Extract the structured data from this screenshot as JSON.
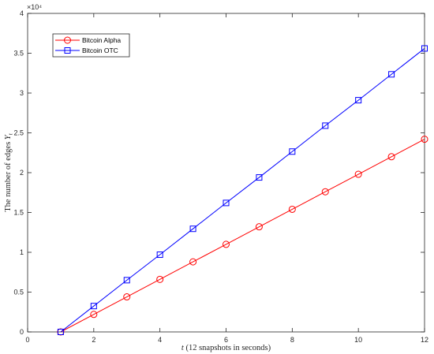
{
  "chart_data": {
    "type": "line",
    "title": "",
    "xlabel": "t (12 snapshots in seconds)",
    "xlabel_parts": {
      "var": "t",
      "rest": " (12 snapshots in seconds)"
    },
    "ylabel": "The number of edges Y_t",
    "ylabel_parts": {
      "main": "The number of edges ",
      "var": "Y",
      "sub": "t"
    },
    "y_exponent_label": "×10⁴",
    "xlim": [
      0,
      12
    ],
    "ylim": [
      0,
      40000
    ],
    "xticks": [
      0,
      2,
      4,
      6,
      8,
      10,
      12
    ],
    "xtick_labels": [
      "0",
      "2",
      "4",
      "6",
      "8",
      "10",
      "12"
    ],
    "yticks": [
      0,
      5000,
      10000,
      15000,
      20000,
      25000,
      30000,
      35000,
      40000
    ],
    "ytick_labels": [
      "0",
      "0.5",
      "1",
      "1.5",
      "2",
      "2.5",
      "3",
      "3.5",
      "4"
    ],
    "grid": false,
    "legend_position": "top-left",
    "x": [
      1,
      2,
      3,
      4,
      5,
      6,
      7,
      8,
      9,
      10,
      11,
      12
    ],
    "series": [
      {
        "name": "Bitcoin Alpha",
        "color": "#ff0000",
        "marker": "circle",
        "values": [
          0,
          2200,
          4400,
          6600,
          8800,
          11000,
          13200,
          15400,
          17600,
          19800,
          22000,
          24200
        ]
      },
      {
        "name": "Bitcoin OTC",
        "color": "#0000ff",
        "marker": "square",
        "values": [
          0,
          3250,
          6500,
          9700,
          12950,
          16200,
          19400,
          22650,
          25900,
          29100,
          32350,
          35600
        ]
      }
    ]
  }
}
